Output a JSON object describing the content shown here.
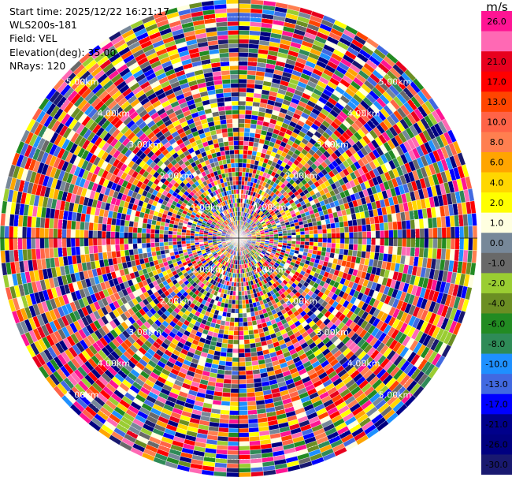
{
  "info": {
    "start_time": "Start time: 2025/12/22 16:21:17",
    "site": "WLS200s-181",
    "field": "Field: VEL",
    "elevation": "Elevation(deg): 35.00",
    "nrays": "NRays: 120"
  },
  "colorbar": {
    "unit": "m/s",
    "bands": [
      {
        "color": "#ff1493",
        "label": "26.0"
      },
      {
        "color": "#ff69b4",
        "label": ""
      },
      {
        "color": "#e8001e",
        "label": "21.0"
      },
      {
        "color": "#ff0000",
        "label": "17.0"
      },
      {
        "color": "#ff4500",
        "label": "13.0"
      },
      {
        "color": "#ff6347",
        "label": "10.0"
      },
      {
        "color": "#ff7f50",
        "label": "8.0"
      },
      {
        "color": "#ffa500",
        "label": "6.0"
      },
      {
        "color": "#ffd700",
        "label": "4.0"
      },
      {
        "color": "#ffff00",
        "label": "2.0"
      },
      {
        "color": "#ffffe0",
        "label": "1.0"
      },
      {
        "color": "#778899",
        "label": "0.0"
      },
      {
        "color": "#696969",
        "label": "-1.0"
      },
      {
        "color": "#9acd32",
        "label": "-2.0"
      },
      {
        "color": "#6b8e23",
        "label": "-4.0"
      },
      {
        "color": "#228b22",
        "label": "-6.0"
      },
      {
        "color": "#2e8b57",
        "label": "-8.0"
      },
      {
        "color": "#1e90ff",
        "label": "-10.0"
      },
      {
        "color": "#4169e1",
        "label": "-13.0"
      },
      {
        "color": "#0000ff",
        "label": "-17.0"
      },
      {
        "color": "#00008b",
        "label": "-21.0"
      },
      {
        "color": "#000080",
        "label": "-26.0"
      },
      {
        "color": "#191970",
        "label": "-30.0"
      }
    ]
  },
  "chart_data": {
    "type": "heatmap",
    "subtype": "polar-ppi",
    "range_rings_km": [
      {
        "range": 1,
        "label": "1.00km"
      },
      {
        "range": 2,
        "label": "2.00km"
      },
      {
        "range": 3,
        "label": "3.00km"
      },
      {
        "range": 4,
        "label": "4.00km"
      },
      {
        "range": 5,
        "label": "5.00km"
      }
    ],
    "max_range_km": 5.4,
    "n_rays": 120,
    "n_gates": 54,
    "grid": true,
    "colorbar_placement": "right",
    "palette": [
      "#ff1493",
      "#ff69b4",
      "#e8001e",
      "#ff0000",
      "#ff4500",
      "#ff6347",
      "#ff7f50",
      "#ffa500",
      "#ffd700",
      "#ffff00",
      "#ffffe0",
      "#778899",
      "#696969",
      "#9acd32",
      "#6b8e23",
      "#228b22",
      "#2e8b57",
      "#1e90ff",
      "#4169e1",
      "#0000ff",
      "#00008b",
      "#000080",
      "#191970"
    ]
  }
}
